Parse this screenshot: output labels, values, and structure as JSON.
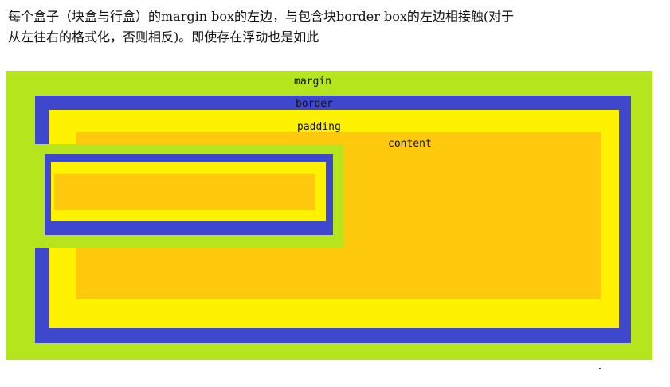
{
  "caption": {
    "line1": "每个盒子（块盒与行盒）的margin box的左边，与包含块border box的左边相接触(对于",
    "line2": "从左往右的格式化，否则相反)。即使存在浮动也是如此"
  },
  "container": {
    "margin_label": "margin",
    "border_label": "border",
    "padding_label": "padding",
    "content_label": "content"
  },
  "colors": {
    "margin": "#b5e61d",
    "border": "#3f48cc",
    "padding": "#fff200",
    "content": "#ffc90e"
  }
}
